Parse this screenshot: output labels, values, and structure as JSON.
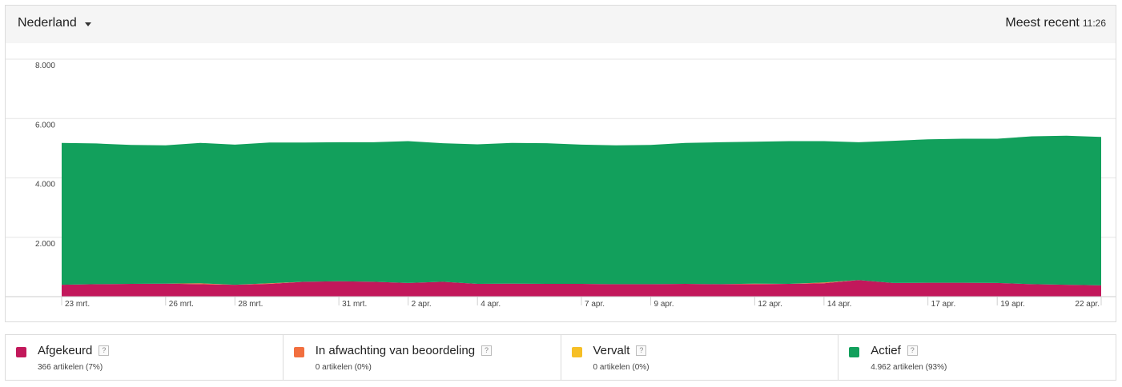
{
  "header": {
    "country": "Nederland",
    "recent_label": "Meest recent",
    "recent_time": "11:26"
  },
  "chart_data": {
    "type": "area",
    "stacked": true,
    "ylim": [
      0,
      8000
    ],
    "yticks": [
      {
        "value": 2000,
        "label": "2.000"
      },
      {
        "value": 4000,
        "label": "4.000"
      },
      {
        "value": 6000,
        "label": "6.000"
      },
      {
        "value": 8000,
        "label": "8.000"
      }
    ],
    "grid": true,
    "x": [
      "23 mrt.",
      "24 mrt.",
      "25 mrt.",
      "26 mrt.",
      "27 mrt.",
      "28 mrt.",
      "29 mrt.",
      "30 mrt.",
      "31 mrt.",
      "1 apr.",
      "2 apr.",
      "3 apr.",
      "4 apr.",
      "5 apr.",
      "6 apr.",
      "7 apr.",
      "8 apr.",
      "9 apr.",
      "10 apr.",
      "11 apr.",
      "12 apr.",
      "13 apr.",
      "14 apr.",
      "15 apr.",
      "16 apr.",
      "17 apr.",
      "18 apr.",
      "19 apr.",
      "20 apr.",
      "21 apr.",
      "22 apr."
    ],
    "xtick_labels": [
      "23 mrt.",
      "26 mrt.",
      "28 mrt.",
      "31 mrt.",
      "2 apr.",
      "4 apr.",
      "7 apr.",
      "9 apr.",
      "12 apr.",
      "14 apr.",
      "17 apr.",
      "19 apr.",
      "22 apr."
    ],
    "series": [
      {
        "name": "Afgekeurd",
        "color": "#c2185b",
        "values": [
          400,
          420,
          430,
          440,
          420,
          400,
          430,
          500,
          520,
          500,
          460,
          500,
          430,
          440,
          430,
          430,
          420,
          420,
          430,
          420,
          420,
          430,
          450,
          560,
          460,
          470,
          470,
          460,
          420,
          400,
          380
        ]
      },
      {
        "name": "In afwachting van beoordeling",
        "color": "#f26f3f",
        "values": [
          0,
          0,
          0,
          0,
          30,
          0,
          20,
          0,
          0,
          0,
          0,
          0,
          0,
          0,
          0,
          0,
          0,
          0,
          0,
          0,
          20,
          0,
          30,
          0,
          0,
          0,
          0,
          0,
          0,
          0,
          0
        ]
      },
      {
        "name": "Vervalt",
        "color": "#f6bf26",
        "values": [
          0,
          0,
          0,
          0,
          0,
          0,
          0,
          0,
          0,
          0,
          0,
          0,
          0,
          0,
          0,
          0,
          0,
          0,
          0,
          0,
          0,
          0,
          0,
          0,
          0,
          0,
          0,
          0,
          0,
          0,
          0
        ]
      },
      {
        "name": "Actief",
        "color": "#12a05c",
        "values": [
          4780,
          4740,
          4680,
          4660,
          4730,
          4720,
          4740,
          4690,
          4680,
          4700,
          4780,
          4670,
          4700,
          4740,
          4740,
          4690,
          4680,
          4690,
          4750,
          4780,
          4780,
          4810,
          4760,
          4640,
          4790,
          4830,
          4850,
          4860,
          4980,
          5020,
          5000
        ]
      }
    ]
  },
  "legend": [
    {
      "label": "Afgekeurd",
      "count": "366 artikelen (7%)",
      "color": "#c2185b"
    },
    {
      "label": "In afwachting van beoordeling",
      "count": "0 artikelen (0%)",
      "color": "#f26f3f"
    },
    {
      "label": "Vervalt",
      "count": "0 artikelen (0%)",
      "color": "#f6bf26"
    },
    {
      "label": "Actief",
      "count": "4.962 artikelen (93%)",
      "color": "#12a05c"
    }
  ],
  "help_icon": "?"
}
